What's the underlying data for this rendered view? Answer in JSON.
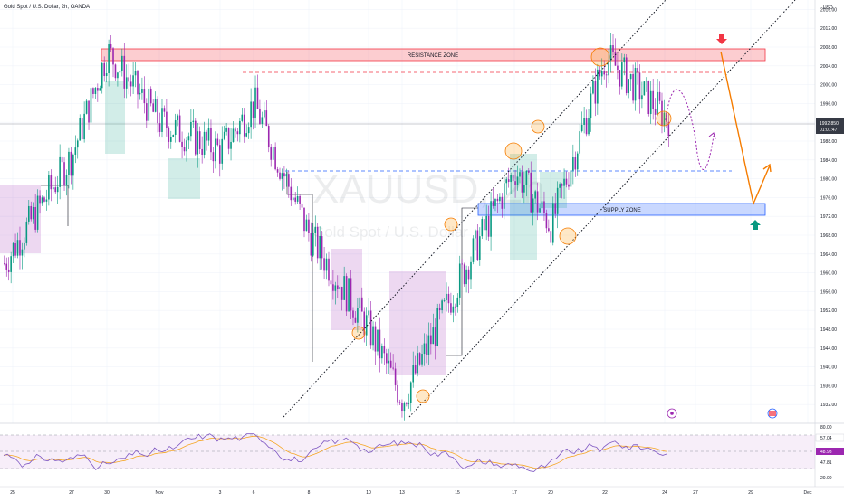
{
  "header": {
    "title": "Gold Spot / U.S. Dollar, 2h, OANDA",
    "currency": "USD"
  },
  "watermark": {
    "symbol": "XAUUSD, 2h",
    "name": "Gold Spot / U.S. Dollar"
  },
  "zones": {
    "resistance_label": "RESISTANCE ZONE",
    "supply_label": "SUPPLY ZONE"
  },
  "price_tag": {
    "price": "1992.850",
    "countdown": "01:01:47"
  },
  "rsi_tags": {
    "top": "57.04",
    "mid": "48.93",
    "bottom": "47.81"
  },
  "colors": {
    "bull": "#089981",
    "bear": "#9c27b0",
    "resistance": "#f23645",
    "supply": "#2962ff",
    "projection": "#f57c00",
    "path": "#9c27b0"
  },
  "chart_data": {
    "type": "candlestick",
    "title": "Gold Spot / U.S. Dollar, 2h, OANDA",
    "ylabel": "USD",
    "ylim": [
      1928,
      2018
    ],
    "y_ticks": [
      1932,
      1936,
      1940,
      1944,
      1948,
      1952,
      1956,
      1960,
      1964,
      1968,
      1972,
      1976,
      1980,
      1984,
      1988,
      1992,
      1996,
      2000,
      2004,
      2008,
      2012,
      2016
    ],
    "x_ticks": [
      "25",
      "27",
      "30",
      "Nov",
      "3",
      "6",
      "8",
      "10",
      "13",
      "15",
      "17",
      "20",
      "22",
      "24",
      "27",
      "29",
      "Dec"
    ],
    "price_path": [
      {
        "x": "25",
        "y": 1962
      },
      {
        "x": "27",
        "y": 1985
      },
      {
        "x": "30",
        "y": 2007
      },
      {
        "x": "Nov",
        "y": 1992
      },
      {
        "x": "3",
        "y": 1986
      },
      {
        "x": "6",
        "y": 1996
      },
      {
        "x": "8",
        "y": 1968
      },
      {
        "x": "10",
        "y": 1948
      },
      {
        "x": "13",
        "y": 1933
      },
      {
        "x": "15",
        "y": 1958
      },
      {
        "x": "17",
        "y": 1982
      },
      {
        "x": "20",
        "y": 1970
      },
      {
        "x": "22",
        "y": 2006
      },
      {
        "x": "24",
        "y": 1993
      }
    ],
    "resistance_zone": [
      2007.5,
      2010.5
    ],
    "supply_zone": [
      1973.5,
      1976.5
    ],
    "last_price": 1992.85,
    "rsi": {
      "ylim": [
        20,
        80
      ],
      "ticks": [
        20.0,
        80.0
      ],
      "upper": 70,
      "lower": 30,
      "values": [
        57.04,
        48.93,
        47.81
      ]
    }
  }
}
